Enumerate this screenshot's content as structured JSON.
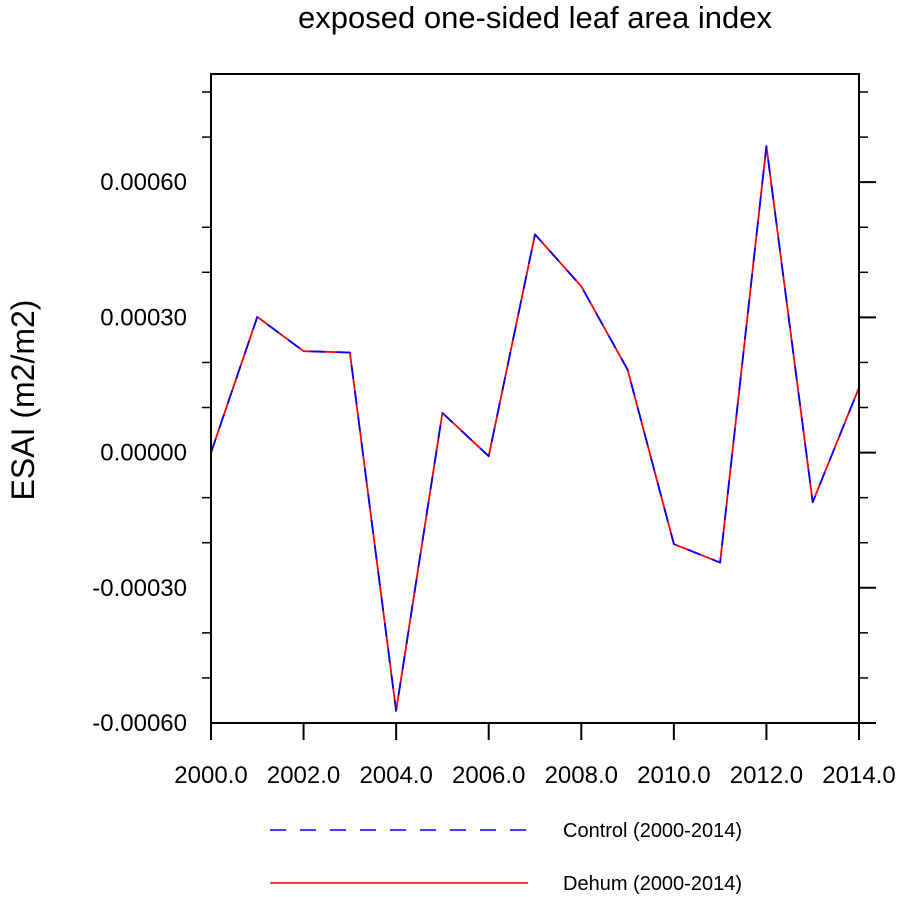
{
  "chart_data": {
    "type": "line",
    "title": "exposed one-sided leaf area index",
    "xlabel": "",
    "ylabel": "ESAI  (m2/m2)",
    "x": [
      2000,
      2001,
      2002,
      2003,
      2004,
      2005,
      2006,
      2007,
      2008,
      2009,
      2010,
      2011,
      2012,
      2013,
      2014
    ],
    "xlim": [
      2000,
      2014
    ],
    "ylim": [
      -0.0006,
      0.00084
    ],
    "xticks": [
      2000,
      2002,
      2004,
      2006,
      2008,
      2010,
      2012,
      2014
    ],
    "xtick_labels": [
      "2000.0",
      "2002.0",
      "2004.0",
      "2006.0",
      "2008.0",
      "2010.0",
      "2012.0",
      "2014.0"
    ],
    "yticks": [
      -0.0006,
      -0.0003,
      0,
      0.0003,
      0.0006
    ],
    "ytick_labels": [
      "-0.00060",
      "-0.00030",
      "0.00000",
      "0.00030",
      "0.00060"
    ],
    "legend_position": "bottom",
    "series": [
      {
        "name": "Control (2000-2014)",
        "color": "#0000ff",
        "style": "dashed",
        "values": [
          0.0,
          0.000301,
          0.000225,
          0.000222,
          -0.000573,
          8.8e-05,
          -8e-06,
          0.000484,
          0.000369,
          0.000184,
          -0.000203,
          -0.000244,
          0.00068,
          -0.00011,
          0.000144
        ]
      },
      {
        "name": "Dehum (2000-2014)",
        "color": "#ff0000",
        "style": "solid",
        "values": [
          0.0,
          0.000301,
          0.000225,
          0.000222,
          -0.000573,
          8.8e-05,
          -8e-06,
          0.000484,
          0.000369,
          0.000184,
          -0.000203,
          -0.000244,
          0.00068,
          -0.00011,
          0.000144
        ]
      }
    ]
  }
}
